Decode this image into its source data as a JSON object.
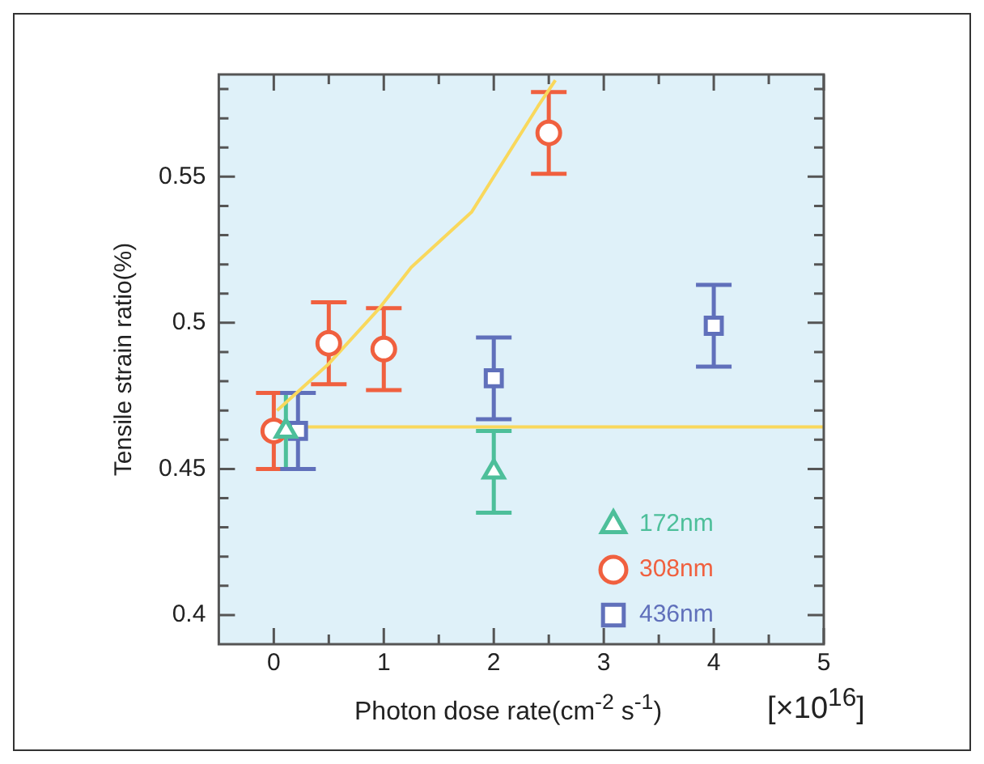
{
  "chart_data": {
    "type": "scatter",
    "xlabel": "Photon dose rate(cm$^{-2}$ s$^{-1}$)",
    "ylabel": "Tensile strain ratio(%)",
    "annotations": [
      "[×10$^{16}$]"
    ],
    "series": [
      {
        "name": "172nm",
        "color": "#4dbf9a",
        "marker": "triangle",
        "x": [
          0.11,
          2
        ],
        "values": [
          0.463,
          0.449
        ],
        "errors": [
          0.013,
          0.014
        ]
      },
      {
        "name": "308nm",
        "color": "#f0603f",
        "marker": "circle",
        "x": [
          0,
          0.5,
          1,
          2.5
        ],
        "values": [
          0.463,
          0.493,
          0.491,
          0.565
        ],
        "errors": [
          0.013,
          0.014,
          0.014,
          0.014
        ]
      },
      {
        "name": "436nm",
        "color": "#6070bb",
        "marker": "square",
        "x": [
          0.22,
          2,
          4
        ],
        "values": [
          0.463,
          0.481,
          0.499
        ],
        "errors": [
          0.013,
          0.014,
          0.014
        ]
      },
      {
        "type": "line",
        "color": "#f9d85c",
        "marker": "none",
        "x": [
          0.03,
          0.5,
          0.96,
          1.25,
          1.8,
          2.4,
          2.56
        ],
        "values": [
          0.47,
          0.486,
          0.505,
          0.519,
          0.538,
          0.574,
          0.583
        ]
      },
      {
        "type": "line",
        "color": "#f9d85c",
        "marker": "none",
        "x": [
          0.1,
          5
        ],
        "values": [
          0.4644,
          0.4644
        ]
      }
    ],
    "xlim": [
      -0.5,
      5
    ],
    "xticks": [
      0,
      {
        "value": 0.5,
        "label": null
      },
      1,
      {
        "value": 1.5,
        "label": null
      },
      2,
      {
        "value": 2.5,
        "label": null
      },
      3,
      {
        "value": 3.5,
        "label": null
      },
      4,
      {
        "value": 4.5,
        "label": null
      },
      5
    ],
    "ylim": [
      0.39,
      0.585
    ],
    "yticks": [
      0.4,
      {
        "value": 0.41,
        "label": null
      },
      {
        "value": 0.42,
        "label": null
      },
      {
        "value": 0.43,
        "label": null
      },
      {
        "value": 0.44,
        "label": null
      },
      0.45,
      {
        "value": 0.46,
        "label": null
      },
      {
        "value": 0.47,
        "label": null
      },
      {
        "value": 0.48,
        "label": null
      },
      {
        "value": 0.49,
        "label": null
      },
      0.5,
      {
        "value": 0.51,
        "label": null
      },
      {
        "value": 0.52,
        "label": null
      },
      {
        "value": 0.53,
        "label": null
      },
      {
        "value": 0.54,
        "label": null
      },
      0.55,
      {
        "value": 0.56,
        "label": null
      },
      {
        "value": 0.57,
        "label": null
      },
      {
        "value": 0.58,
        "label": null
      }
    ],
    "grid": false,
    "legend": "bottom right"
  }
}
